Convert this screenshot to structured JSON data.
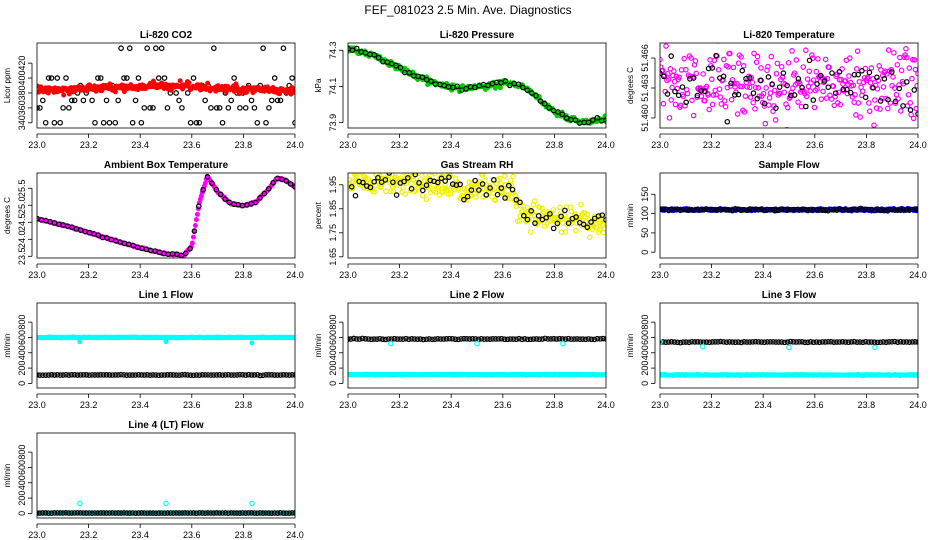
{
  "title": "FEF_081023  2.5 Min. Ave. Diagnostics",
  "chart_data": [
    {
      "id": "co2",
      "type": "scatter",
      "title": "Li-820 CO2",
      "ylabel": "Licor ppm",
      "xlim": [
        23.0,
        24.0
      ],
      "ylim": [
        333,
        447
      ],
      "xticks": [
        23.0,
        23.2,
        23.4,
        23.6,
        23.8,
        24.0
      ],
      "yticks": [
        340,
        360,
        380,
        400,
        420
      ],
      "series": [
        {
          "name": "black",
          "color": "#000000",
          "style": "open",
          "gen": "levels",
          "levels": [
            340,
            360,
            370,
            380,
            390,
            400,
            440
          ],
          "count": 90,
          "seed": 11
        },
        {
          "name": "red",
          "color": "#ff0000",
          "style": "filled",
          "gen": "trend",
          "knots": [
            [
              23.0,
              384
            ],
            [
              23.4,
              388
            ],
            [
              23.55,
              390
            ],
            [
              23.7,
              386
            ],
            [
              24.0,
              383
            ]
          ],
          "noise": 2.5,
          "count": 320,
          "seed": 12
        }
      ]
    },
    {
      "id": "pressure",
      "type": "scatter",
      "title": "Li-820 Pressure",
      "ylabel": "kPa",
      "xlim": [
        23.0,
        24.0
      ],
      "ylim": [
        73.87,
        74.34
      ],
      "xticks": [
        23.0,
        23.2,
        23.4,
        23.6,
        23.8,
        24.0
      ],
      "yticks": [
        73.9,
        74.1,
        74.3
      ],
      "series": [
        {
          "name": "green",
          "color": "#00cc00",
          "style": "filled",
          "gen": "trend",
          "knots": [
            [
              23.0,
              74.31
            ],
            [
              23.1,
              74.27
            ],
            [
              23.2,
              74.2
            ],
            [
              23.3,
              74.14
            ],
            [
              23.37,
              74.1
            ],
            [
              23.45,
              74.09
            ],
            [
              23.52,
              74.1
            ],
            [
              23.6,
              74.12
            ],
            [
              23.67,
              74.1
            ],
            [
              23.72,
              74.06
            ],
            [
              23.78,
              73.98
            ],
            [
              23.85,
              73.92
            ],
            [
              23.92,
              73.9
            ],
            [
              24.0,
              73.92
            ]
          ],
          "noise": 0.008,
          "count": 260,
          "seed": 21
        },
        {
          "name": "black",
          "color": "#000000",
          "style": "open",
          "gen": "trend",
          "knots": [
            [
              23.0,
              74.31
            ],
            [
              23.1,
              74.27
            ],
            [
              23.2,
              74.2
            ],
            [
              23.3,
              74.14
            ],
            [
              23.37,
              74.1
            ],
            [
              23.45,
              74.09
            ],
            [
              23.52,
              74.1
            ],
            [
              23.6,
              74.12
            ],
            [
              23.67,
              74.1
            ],
            [
              23.72,
              74.06
            ],
            [
              23.78,
              73.98
            ],
            [
              23.85,
              73.92
            ],
            [
              23.92,
              73.9
            ],
            [
              24.0,
              73.92
            ]
          ],
          "noise": 0.006,
          "count": 60,
          "seed": 22
        }
      ]
    },
    {
      "id": "temp",
      "type": "scatter",
      "title": "Li-820 Temperature",
      "ylabel": "degrees C",
      "xlim": [
        23.0,
        24.0
      ],
      "ylim": [
        51.459,
        51.4675
      ],
      "xticks": [
        23.0,
        23.2,
        23.4,
        23.6,
        23.8,
        24.0
      ],
      "yticks": [
        51.46,
        51.463,
        51.466
      ],
      "series": [
        {
          "name": "magenta",
          "color": "#ff00ff",
          "style": "open",
          "gen": "trend",
          "knots": [
            [
              23.0,
              51.4633
            ],
            [
              24.0,
              51.4633
            ]
          ],
          "noise": 0.0018,
          "count": 300,
          "seed": 31
        },
        {
          "name": "black",
          "color": "#000000",
          "style": "open",
          "gen": "trend",
          "knots": [
            [
              23.0,
              51.4635
            ],
            [
              24.0,
              51.4635
            ]
          ],
          "noise": 0.0014,
          "count": 70,
          "seed": 32
        }
      ]
    },
    {
      "id": "ambient",
      "type": "scatter",
      "title": "Ambient Box Temperature",
      "ylabel": "degrees C",
      "xlim": [
        23.0,
        24.0
      ],
      "ylim": [
        23.45,
        25.95
      ],
      "xticks": [
        23.0,
        23.2,
        23.4,
        23.6,
        23.8,
        24.0
      ],
      "yticks": [
        23.5,
        24.0,
        24.5,
        25.0,
        25.5
      ],
      "series": [
        {
          "name": "magenta",
          "color": "#ff00ff",
          "style": "filled",
          "gen": "trend",
          "knots": [
            [
              23.0,
              24.6
            ],
            [
              23.1,
              24.42
            ],
            [
              23.2,
              24.2
            ],
            [
              23.3,
              23.97
            ],
            [
              23.4,
              23.75
            ],
            [
              23.5,
              23.57
            ],
            [
              23.57,
              23.53
            ],
            [
              23.6,
              23.8
            ],
            [
              23.63,
              25.1
            ],
            [
              23.66,
              25.85
            ],
            [
              23.7,
              25.4
            ],
            [
              23.75,
              25.05
            ],
            [
              23.8,
              24.98
            ],
            [
              23.85,
              25.1
            ],
            [
              23.9,
              25.5
            ],
            [
              23.93,
              25.8
            ],
            [
              23.96,
              25.75
            ],
            [
              24.0,
              25.55
            ]
          ],
          "noise": 0.01,
          "count": 260,
          "seed": 41
        },
        {
          "name": "black",
          "color": "#000000",
          "style": "open",
          "gen": "trend",
          "knots": [
            [
              23.0,
              24.6
            ],
            [
              23.1,
              24.42
            ],
            [
              23.2,
              24.2
            ],
            [
              23.3,
              23.97
            ],
            [
              23.4,
              23.75
            ],
            [
              23.5,
              23.57
            ],
            [
              23.57,
              23.53
            ],
            [
              23.6,
              23.8
            ],
            [
              23.63,
              25.1
            ],
            [
              23.66,
              25.85
            ],
            [
              23.7,
              25.4
            ],
            [
              23.75,
              25.05
            ],
            [
              23.8,
              24.98
            ],
            [
              23.85,
              25.1
            ],
            [
              23.9,
              25.5
            ],
            [
              23.93,
              25.8
            ],
            [
              23.96,
              25.75
            ],
            [
              24.0,
              25.55
            ]
          ],
          "noise": 0.008,
          "count": 60,
          "seed": 42
        }
      ]
    },
    {
      "id": "rh",
      "type": "scatter",
      "title": "Gas Stream RH",
      "ylabel": "percent",
      "xlim": [
        23.0,
        24.0
      ],
      "ylim": [
        1.645,
        1.999
      ],
      "xticks": [
        23.0,
        23.2,
        23.4,
        23.6,
        23.8,
        24.0
      ],
      "yticks": [
        1.65,
        1.75,
        1.85,
        1.95
      ],
      "series": [
        {
          "name": "yellow",
          "color": "#f0f000",
          "style": "open",
          "gen": "trend",
          "knots": [
            [
              23.0,
              1.97
            ],
            [
              23.2,
              1.955
            ],
            [
              23.4,
              1.94
            ],
            [
              23.62,
              1.93
            ],
            [
              23.64,
              1.93
            ],
            [
              23.66,
              1.83
            ],
            [
              23.9,
              1.8
            ],
            [
              24.0,
              1.79
            ]
          ],
          "noise": 0.028,
          "count": 320,
          "seed": 51
        },
        {
          "name": "black",
          "color": "#000000",
          "style": "open",
          "gen": "trend",
          "knots": [
            [
              23.0,
              1.97
            ],
            [
              23.2,
              1.955
            ],
            [
              23.4,
              1.94
            ],
            [
              23.62,
              1.93
            ],
            [
              23.64,
              1.93
            ],
            [
              23.66,
              1.83
            ],
            [
              23.9,
              1.8
            ],
            [
              24.0,
              1.79
            ]
          ],
          "noise": 0.025,
          "count": 70,
          "seed": 52
        }
      ]
    },
    {
      "id": "sample",
      "type": "scatter",
      "title": "Sample Flow",
      "ylabel": "ml/min",
      "xlim": [
        23.0,
        24.0
      ],
      "ylim": [
        -15,
        205
      ],
      "xticks": [
        23.0,
        23.2,
        23.4,
        23.6,
        23.8,
        24.0
      ],
      "yticks": [
        0,
        50,
        100,
        150
      ],
      "series": [
        {
          "name": "blue",
          "color": "#0000ff",
          "style": "filled",
          "gen": "trend",
          "knots": [
            [
              23.0,
              110
            ],
            [
              24.0,
              110
            ]
          ],
          "noise": 1.5,
          "count": 300,
          "seed": 61
        },
        {
          "name": "black",
          "color": "#000000",
          "style": "open",
          "gen": "trend",
          "knots": [
            [
              23.0,
              110
            ],
            [
              24.0,
              110
            ]
          ],
          "noise": 1.0,
          "count": 90,
          "seed": 62
        }
      ]
    },
    {
      "id": "line1",
      "type": "scatter",
      "title": "Line 1 Flow",
      "ylabel": "ml/min",
      "xlim": [
        23.0,
        24.0
      ],
      "ylim": [
        -60,
        1050
      ],
      "xticks": [
        23.0,
        23.2,
        23.4,
        23.6,
        23.8,
        24.0
      ],
      "yticks": [
        0,
        200,
        400,
        600,
        800
      ],
      "series": [
        {
          "name": "cyan",
          "color": "#00ffff",
          "style": "filled",
          "gen": "trend",
          "knots": [
            [
              23.0,
              600
            ],
            [
              24.0,
              600
            ]
          ],
          "noise": 3,
          "count": 320,
          "seed": 71,
          "extras": [
            [
              23.166,
              545
            ],
            [
              23.5,
              545
            ],
            [
              23.833,
              530
            ]
          ]
        },
        {
          "name": "black",
          "color": "#000000",
          "style": "open",
          "gen": "trend",
          "knots": [
            [
              23.0,
              110
            ],
            [
              24.0,
              110
            ]
          ],
          "noise": 2,
          "count": 90,
          "seed": 72
        }
      ]
    },
    {
      "id": "line2",
      "type": "scatter",
      "title": "Line 2 Flow",
      "ylabel": "ml/min",
      "xlim": [
        23.0,
        24.0
      ],
      "ylim": [
        -60,
        1050
      ],
      "xticks": [
        23.0,
        23.2,
        23.4,
        23.6,
        23.8,
        24.0
      ],
      "yticks": [
        0,
        200,
        400,
        600,
        800
      ],
      "series": [
        {
          "name": "cyan",
          "color": "#00ffff",
          "style": "filled",
          "gen": "trend",
          "knots": [
            [
              23.0,
              115
            ],
            [
              24.0,
              115
            ]
          ],
          "noise": 2,
          "count": 320,
          "seed": 81
        },
        {
          "name": "black",
          "color": "#000000",
          "style": "open",
          "gen": "trend",
          "knots": [
            [
              23.0,
              580
            ],
            [
              24.0,
              580
            ]
          ],
          "noise": 3,
          "count": 90,
          "seed": 82,
          "extras": [
            [
              23.0,
              580
            ]
          ]
        },
        {
          "name": "cyan-dips",
          "color": "#00ffff",
          "style": "open",
          "gen": "points",
          "points": [
            [
              23.166,
              520
            ],
            [
              23.5,
              520
            ],
            [
              23.833,
              520
            ]
          ]
        }
      ]
    },
    {
      "id": "line3",
      "type": "scatter",
      "title": "Line 3 Flow",
      "ylabel": "ml/min",
      "xlim": [
        23.0,
        24.0
      ],
      "ylim": [
        -60,
        1050
      ],
      "xticks": [
        23.0,
        23.2,
        23.4,
        23.6,
        23.8,
        24.0
      ],
      "yticks": [
        0,
        200,
        400,
        600,
        800
      ],
      "series": [
        {
          "name": "cyan",
          "color": "#00ffff",
          "style": "filled",
          "gen": "trend",
          "knots": [
            [
              23.0,
              110
            ],
            [
              24.0,
              110
            ]
          ],
          "noise": 3,
          "count": 320,
          "seed": 91
        },
        {
          "name": "black",
          "color": "#000000",
          "style": "open",
          "gen": "trend",
          "knots": [
            [
              23.0,
              540
            ],
            [
              24.0,
              540
            ]
          ],
          "noise": 3,
          "count": 90,
          "seed": 92
        },
        {
          "name": "cyan-dips",
          "color": "#00ffff",
          "style": "open",
          "gen": "points",
          "points": [
            [
              23.0,
              540
            ],
            [
              23.166,
              480
            ],
            [
              23.5,
              470
            ],
            [
              23.833,
              470
            ]
          ]
        }
      ]
    },
    {
      "id": "line4",
      "type": "scatter",
      "title": "Line 4 (LT) Flow",
      "ylabel": "ml/min",
      "xlim": [
        23.0,
        24.0
      ],
      "ylim": [
        -60,
        1050
      ],
      "xticks": [
        23.0,
        23.2,
        23.4,
        23.6,
        23.8,
        24.0
      ],
      "yticks": [
        0,
        200,
        400,
        600,
        800
      ],
      "series": [
        {
          "name": "cyan",
          "color": "#00ffff",
          "style": "filled",
          "gen": "trend",
          "knots": [
            [
              23.0,
              5
            ],
            [
              24.0,
              5
            ]
          ],
          "noise": 1.5,
          "count": 320,
          "seed": 101
        },
        {
          "name": "black",
          "color": "#000000",
          "style": "open",
          "gen": "trend",
          "knots": [
            [
              23.0,
              5
            ],
            [
              24.0,
              5
            ]
          ],
          "noise": 1.0,
          "count": 90,
          "seed": 102
        },
        {
          "name": "cyan-spikes",
          "color": "#00ffff",
          "style": "open",
          "gen": "points",
          "points": [
            [
              23.166,
              130
            ],
            [
              23.5,
              130
            ],
            [
              23.833,
              130
            ]
          ]
        }
      ]
    }
  ]
}
